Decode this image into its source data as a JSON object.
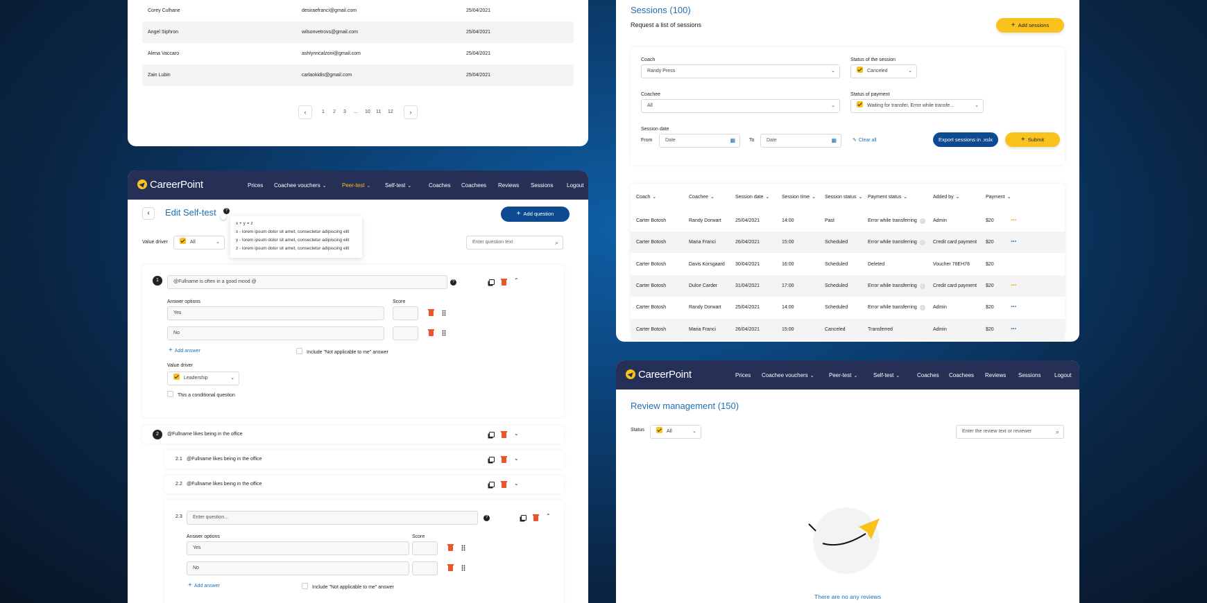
{
  "users_table": {
    "rows": [
      {
        "name": "Corey Culhane",
        "email": "desiraefranci@gmail.com",
        "date": "25/04/2021"
      },
      {
        "name": "Angel Siphron",
        "email": "wilsonvetrovs@gmail.com",
        "date": "25/04/2021"
      },
      {
        "name": "Alena Vaccaro",
        "email": "ashlynncalzoni@gmail.com",
        "date": "25/04/2021"
      },
      {
        "name": "Zain Lubin",
        "email": "carlaokidis@gmail.com",
        "date": "25/04/2021"
      }
    ],
    "pagination": {
      "prev": "‹",
      "next": "›",
      "pages": [
        "1",
        "2",
        "3",
        "...",
        "10",
        "11",
        "12"
      ],
      "current": "2"
    }
  },
  "nav": {
    "logo": "CareerPoint",
    "items": [
      "Prices",
      "Coachee vouchers",
      "Peer-test",
      "Self-test",
      "Coaches",
      "Coachees",
      "Reviews",
      "Sessions",
      "Logout"
    ],
    "chevron": "⌄"
  },
  "edit_selftest": {
    "back": "‹",
    "title": "Edit Self-test",
    "help": "?",
    "add_question": "Add question",
    "tooltip": [
      "x + y = z",
      "x - lorem ipsum dolor sit amet, consectetur adipiscing elit",
      "y - lorem ipsum dolor sit amet, consectetur adipiscing elit",
      "z - lorem ipsum dolor sit amet, consectetur adipiscing elit"
    ],
    "value_driver_label": "Value driver",
    "value_driver_value": "All",
    "search_placeholder": "Enter question text",
    "q1": {
      "number": "1",
      "text": "@Fullname is often in a good mood @",
      "answer_options_label": "Answer options",
      "score_label": "Score",
      "answers": [
        "Yes",
        "No"
      ],
      "add_answer": "Add answer",
      "na_label": "Include \"Not applicable to me\" answer",
      "vd_label": "Value driver",
      "vd_value": "Leadership",
      "conditional": "This a conditional question"
    },
    "q2": {
      "number": "2",
      "text": "@Fullname likes being in the office",
      "subs": [
        {
          "num": "2.1",
          "text": "@Fullname likes being in the office"
        },
        {
          "num": "2.2",
          "text": "@Fullname likes being in the office"
        }
      ],
      "sub3": {
        "num": "2.3",
        "placeholder": "Enter question...",
        "answer_options_label": "Answer options",
        "score_label": "Score",
        "answers": [
          "Yes",
          "No"
        ],
        "add_answer": "Add answer",
        "na_label": "Include \"Not applicable to me\" answer"
      }
    }
  },
  "sessions": {
    "title": "Sessions (100)",
    "subtitle": "Request a list of sessions",
    "add_sessions": "Add sessions",
    "filters": {
      "coach_label": "Coach",
      "coach_value": "Randy Press",
      "status_label": "Status of the session",
      "status_value": "Canceled",
      "coachee_label": "Coachee",
      "coachee_value": "All",
      "payment_label": "Status of payment",
      "payment_value": "Waiting for transfer, Error while transfe...",
      "date_label": "Session date",
      "from": "From",
      "to": "To",
      "date_placeholder": "Date",
      "clear_all": "Clear all",
      "export": "Export sessions in .xslx",
      "submit": "Submit"
    },
    "columns": [
      "Coach",
      "Coachee",
      "Session date",
      "Session time",
      "Session status",
      "Payment status",
      "Added by",
      "Payment"
    ],
    "rows": [
      {
        "coach": "Carter Botosh",
        "coachee": "Randy Dorwart",
        "date": "25/04/2021",
        "time": "14:00",
        "status": "Past",
        "payment_status": "Error while transferring",
        "info": true,
        "added_by": "Admin",
        "payment": "$20",
        "menu_color": "#f2a900"
      },
      {
        "coach": "Carter Botosh",
        "coachee": "Maria Franci",
        "date": "26/04/2021",
        "time": "15:00",
        "status": "Scheduled",
        "payment_status": "Error while transferring",
        "info": true,
        "added_by": "Credit card payment",
        "payment": "$20",
        "menu_color": "#1e6fb5"
      },
      {
        "coach": "Carter Botosh",
        "coachee": "Davis Korsgaard",
        "date": "30/04/2021",
        "time": "16:00",
        "status": "Scheduled",
        "payment_status": "Deleted",
        "info": false,
        "added_by": "Voucher 76EH78",
        "payment": "$20",
        "menu_color": ""
      },
      {
        "coach": "Carter Botosh",
        "coachee": "Dulce Carder",
        "date": "31/04/2021",
        "time": "17:00",
        "status": "Scheduled",
        "payment_status": "Error while transferring",
        "info": true,
        "added_by": "Credit card payment",
        "payment": "$20",
        "menu_color": "#f2a900"
      },
      {
        "coach": "Carter Botosh",
        "coachee": "Randy Dorwart",
        "date": "25/04/2021",
        "time": "14:00",
        "status": "Scheduled",
        "payment_status": "Error while transferring",
        "info": true,
        "added_by": "Admin",
        "payment": "$20",
        "menu_color": "#1e6fb5"
      },
      {
        "coach": "Carter Botosh",
        "coachee": "Maria Franci",
        "date": "26/04/2021",
        "time": "15:00",
        "status": "Canceled",
        "payment_status": "Transferred",
        "info": false,
        "added_by": "Admin",
        "payment": "$20",
        "menu_color": "#1e6fb5"
      }
    ]
  },
  "reviews": {
    "title": "Review management (150)",
    "status_label": "Status",
    "status_value": "All",
    "search_placeholder": "Enter the review text or reviewer",
    "empty": "There are no any reviews"
  },
  "colors": {
    "accent": "#f9c21d",
    "primary": "#0d4a8f",
    "nav": "#262f55",
    "link": "#1e6fb5",
    "danger": "#e8572a"
  }
}
